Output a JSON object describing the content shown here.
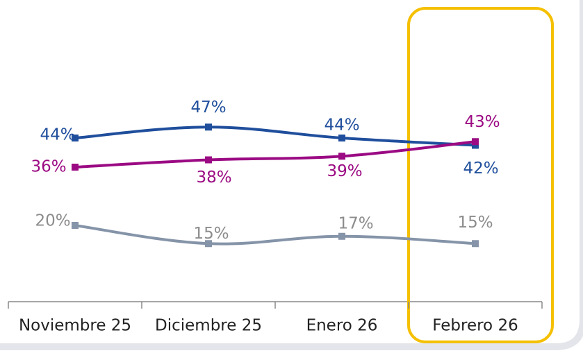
{
  "chart_data": {
    "type": "line",
    "categories": [
      "Noviembre 25",
      "Diciembre 25",
      "Enero 26",
      "Febrero 26"
    ],
    "series": [
      {
        "color": "#1f4e9c",
        "values": [
          44,
          47,
          44,
          42
        ],
        "value_labels": [
          "44%",
          "47%",
          "44%",
          "42%"
        ]
      },
      {
        "color": "#9b0a83",
        "values": [
          36,
          38,
          39,
          43
        ],
        "value_labels": [
          "36%",
          "38%",
          "39%",
          "43%"
        ]
      },
      {
        "color": "#8594a8",
        "values": [
          20,
          15,
          17,
          15
        ],
        "value_labels": [
          "20%",
          "15%",
          "17%",
          "15%"
        ]
      }
    ],
    "ylim": [
      0,
      60
    ]
  }
}
